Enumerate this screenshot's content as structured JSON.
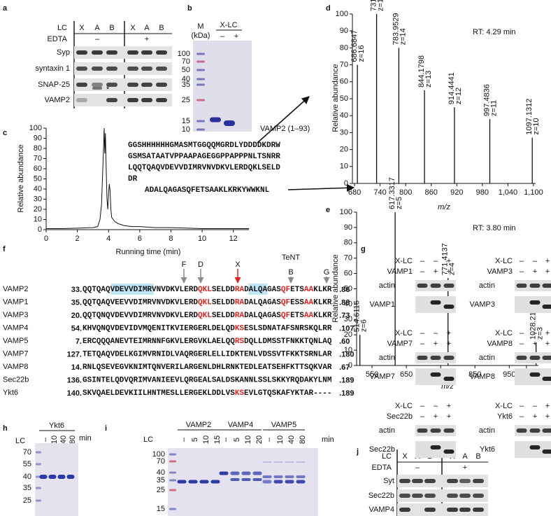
{
  "chart_data": [
    {
      "type": "line",
      "x": [
        0,
        1,
        2,
        3,
        3.3,
        3.45,
        3.55,
        3.62,
        3.68,
        3.72,
        3.76,
        3.8,
        3.85,
        3.9,
        3.95,
        4.0,
        4.05,
        4.1,
        4.15,
        4.2,
        4.3,
        4.4,
        4.6,
        4.8,
        5.0,
        5.5,
        6,
        7,
        8,
        10,
        12,
        13
      ],
      "values": [
        1,
        1,
        1.5,
        2,
        3,
        10,
        25,
        55,
        80,
        100,
        75,
        95,
        60,
        30,
        20,
        35,
        45,
        38,
        20,
        12,
        10,
        8,
        6,
        5,
        4,
        3,
        3,
        2,
        2,
        1,
        1,
        1
      ],
      "color": "#111111",
      "xlim": [
        0,
        13
      ],
      "ylim": [
        0,
        100
      ],
      "xticks": [
        0,
        2,
        4,
        6,
        8,
        10,
        12
      ],
      "yticks": [
        0,
        10,
        20,
        30,
        40,
        50,
        60,
        70,
        80,
        90,
        100
      ],
      "xlabel": "Running time (min)",
      "ylabel": "Relative abundance"
    },
    {
      "type": "stem",
      "x": [
        686.6847,
        731.7564,
        783.9529,
        844.1798,
        914.4441,
        997.4836,
        1097.1312
      ],
      "values": [
        70,
        100,
        80,
        55,
        45,
        38,
        27
      ],
      "color": "#111111",
      "label_color": "#2f63d6",
      "xlim": [
        675,
        1105
      ],
      "ylim": [
        0,
        100
      ],
      "xticks": [
        680,
        740,
        800,
        860,
        920,
        980,
        {
          "value": 1040,
          "label": "1,040"
        },
        {
          "value": 1100,
          "label": "1,100"
        }
      ],
      "yticks": [
        0,
        10,
        20,
        30,
        40,
        50,
        60,
        70,
        80,
        90,
        100
      ],
      "xlabel": "m/z",
      "ylabel": "Relative abundance",
      "rt_label": "RT: 4.29 min",
      "peak_labels": [
        {
          "mz": "686.6847",
          "charge": "z=16"
        },
        {
          "mz": "731.7564",
          "charge": "z=15"
        },
        {
          "mz": "783.9529",
          "charge": "z=14"
        },
        {
          "mz": "844.1798",
          "charge": "z=13"
        },
        {
          "mz": "914.4441",
          "charge": "z=12"
        },
        {
          "mz": "997.4836",
          "charge": "z=11"
        },
        {
          "mz": "1097.1312",
          "charge": "z=10"
        }
      ]
    },
    {
      "type": "stem",
      "x": [
        514.6116,
        617.3317,
        771.4137,
        1028.2152
      ],
      "values": [
        20,
        100,
        57,
        15
      ],
      "color": "#111111",
      "label_color": "#e0281e",
      "xlim": [
        505,
        1035
      ],
      "ylim": [
        0,
        100
      ],
      "xticks": [
        550,
        650,
        750,
        850,
        950,
        {
          "value": 1000,
          "label": "1,000"
        }
      ],
      "yticks": [
        0,
        10,
        20,
        30,
        40,
        50,
        60,
        70,
        80,
        90,
        100
      ],
      "xlabel": "m/z",
      "ylabel": "Relative abundance",
      "rt_label": "RT: 3.80 min",
      "peak_labels": [
        {
          "mz": "514.6116",
          "charge": "z=6"
        },
        {
          "mz": "617.3317",
          "charge": "z=5"
        },
        {
          "mz": "771.4137",
          "charge": "z=4"
        },
        {
          "mz": "1028.2152",
          "charge": "z=3"
        }
      ]
    }
  ],
  "panels": {
    "a": {
      "letter": "a",
      "lc": "LC",
      "lanes": [
        "X",
        "A",
        "B",
        "X",
        "A",
        "B"
      ],
      "edta": "EDTA",
      "edta_groups": [
        "–",
        "+"
      ],
      "rows": [
        "Syp",
        "syntaxin 1",
        "SNAP-25",
        "VAMP2"
      ],
      "mark": "*"
    },
    "b": {
      "letter": "b",
      "m": "M",
      "kda": "(kDa)",
      "xlc": "X-LC",
      "signs": [
        "–",
        "+"
      ],
      "markers": [
        100,
        70,
        50,
        40,
        35,
        25,
        15,
        10
      ],
      "band": "VAMP2 (1–93)"
    },
    "c": {
      "letter": "c",
      "sequence_blue": [
        "GGSHHHHHHGMASMTGGQQMGRDLYDDDDKDRW",
        "GSMSATAATVPPAAPAGEGGPPAPPPNLTSNRR",
        "LQQTQAQVDEVVDIMRVNVDKVLERDQKLSELD",
        "DR"
      ],
      "sequence_red": "ADALQAGASQFETSAAKLKRKYWWKNL"
    },
    "d": {
      "letter": "d"
    },
    "e": {
      "letter": "e"
    },
    "f": {
      "letter": "f",
      "tent": "TeNT",
      "sites": [
        {
          "label": "F"
        },
        {
          "label": "D"
        },
        {
          "label": "X",
          "color": "#e8201a"
        },
        {
          "label": "B"
        },
        {
          "label": "G"
        }
      ],
      "rows": [
        {
          "name": "VAMP2",
          "start": "33.",
          "end": ".86",
          "segments": [
            {
              "text": "QQTQAQ"
            },
            {
              "text": "VDEVVDIMR",
              "highlight": "#bfe4f4"
            },
            {
              "text": "VNVDKVLERD"
            },
            {
              "text": "QKL",
              "color": "#e8201a"
            },
            {
              "text": "SELDD"
            },
            {
              "text": "RA",
              "color": "#e8201a"
            },
            {
              "text": "DALQ",
              "highlight": "#bfe4f4"
            },
            {
              "text": "AGAS"
            },
            {
              "text": "QF",
              "color": "#e8201a"
            },
            {
              "text": "ETS"
            },
            {
              "text": "AA",
              "color": "#e8201a"
            },
            {
              "text": "KLKR"
            }
          ]
        },
        {
          "name": "VAMP1",
          "start": "35.",
          "end": ".88",
          "segments": [
            {
              "text": "QQTQAQVEEVVDIMRVNVDKVLERD"
            },
            {
              "text": "QKL",
              "color": "#e8201a"
            },
            {
              "text": "SELDD"
            },
            {
              "text": "RA",
              "color": "#e8201a"
            },
            {
              "text": "DALQAGAS"
            },
            {
              "text": "QF",
              "color": "#e8201a"
            },
            {
              "text": "ESS"
            },
            {
              "text": "AA",
              "color": "#e8201a"
            },
            {
              "text": "KLKR"
            }
          ]
        },
        {
          "name": "VAMP3",
          "start": "20.",
          "end": ".73",
          "segments": [
            {
              "text": "QQTQNQVDEVVDIMRVNVDKVLERD"
            },
            {
              "text": "QKL",
              "color": "#e8201a"
            },
            {
              "text": "SELDD"
            },
            {
              "text": "RA",
              "color": "#e8201a"
            },
            {
              "text": "DALQAGAS"
            },
            {
              "text": "QF",
              "color": "#e8201a"
            },
            {
              "text": "ETS"
            },
            {
              "text": "AA",
              "color": "#e8201a"
            },
            {
              "text": "KLKR"
            }
          ]
        },
        {
          "name": "VAMP4",
          "start": "54.",
          "end": ".107",
          "segments": [
            {
              "text": "KHVQNQVDEVIDVMQENITKVIERGERLDELQD"
            },
            {
              "text": "KS",
              "color": "#e8201a"
            },
            {
              "text": "ESLSDNATAFSNRSKQLRR"
            }
          ]
        },
        {
          "name": "VAMP5",
          "start": "7.",
          "end": ".60",
          "segments": [
            {
              "text": "ERCQQQANEVTEIMRNNFGKVLERGVKLAELQQ"
            },
            {
              "text": "RS",
              "color": "#e8201a"
            },
            {
              "text": "DQLLDMSSTFNKKTQNLAQ"
            }
          ]
        },
        {
          "name": "VAMP7",
          "start": "127.",
          "end": ".180",
          "segments": [
            {
              "text": "TETQAQVDELKGIMVRNIDLVAQRGERLELLIDKTENLVDSSVTFKKTSRNLAR"
            }
          ]
        },
        {
          "name": "VAMP8",
          "start": "14.",
          "end": ".67",
          "segments": [
            {
              "text": "RNLQSEVEGVKNIMTQNVERILARGENLDHLRNKTEDLEATSEHFKTTSQKVAR"
            }
          ]
        },
        {
          "name": "Sec22b",
          "start": "136.",
          "end": ".189",
          "segments": [
            {
              "text": "GSINTELQDVQRIMVANIEEVLQRGEALSALDSKANNLSSLSKKYRQDAKYLNM"
            }
          ]
        },
        {
          "name": "Ykt6",
          "start": "140.",
          "end": ".189",
          "segments": [
            {
              "text": "SKVQAELDEVKIILHNTMESLLERGEKLDDLVS"
            },
            {
              "text": "KS",
              "color": "#e8201a"
            },
            {
              "text": "EVLGTQSKAFYKTAR----"
            }
          ]
        }
      ]
    },
    "g": {
      "letter": "g",
      "blots": [
        {
          "header": [
            "X-LC",
            "VAMP1"
          ],
          "signs": [
            [
              "–",
              "–",
              "+"
            ],
            [
              "–",
              "+",
              "+"
            ]
          ],
          "rows": [
            "actin",
            "VAMP1"
          ]
        },
        {
          "header": [
            "X-LC",
            "VAMP3"
          ],
          "signs": [
            [
              "–",
              "–",
              "+"
            ],
            [
              "–",
              "+",
              "+"
            ]
          ],
          "rows": [
            "actin",
            "VAMP3"
          ]
        },
        {
          "header": [
            "X-LC",
            "VAMP7"
          ],
          "signs": [
            [
              "–",
              "–",
              "+"
            ],
            [
              "–",
              "+",
              "+"
            ]
          ],
          "rows": [
            "actin",
            "VAMP7"
          ]
        },
        {
          "header": [
            "X-LC",
            "VAMP8"
          ],
          "signs": [
            [
              "–",
              "–",
              "+"
            ],
            [
              "–",
              "+",
              "+"
            ]
          ],
          "rows": [
            "actin",
            "VAMP8"
          ]
        },
        {
          "header": [
            "X-LC",
            "Sec22b"
          ],
          "signs": [
            [
              "–",
              "–",
              "+"
            ],
            [
              "–",
              "+",
              "+"
            ]
          ],
          "rows": [
            "actin",
            "Sec22b"
          ]
        },
        {
          "header": [
            "X-LC",
            "Ykt6"
          ],
          "signs": [
            [
              "–",
              "–",
              "+"
            ],
            [
              "–",
              "+",
              "+"
            ]
          ],
          "rows": [
            "actin",
            "Ykt6"
          ]
        }
      ]
    },
    "h": {
      "letter": "h",
      "protein": "Ykt6",
      "lc": "LC",
      "lanes": [
        "–",
        10,
        40,
        80
      ],
      "unit": "min",
      "markers": [
        70,
        55,
        40,
        35,
        25
      ]
    },
    "i": {
      "letter": "i",
      "lc": "LC",
      "unit": "min",
      "markers": [
        100,
        70,
        40,
        35,
        25,
        15
      ],
      "groups": [
        {
          "name": "VAMP2",
          "lanes": [
            "–",
            5,
            10,
            15
          ]
        },
        {
          "name": "VAMP4",
          "lanes": [
            "–",
            5,
            10,
            20
          ]
        },
        {
          "name": "VAMP5",
          "lanes": [
            "–",
            10,
            40,
            80
          ]
        }
      ]
    },
    "j": {
      "letter": "j",
      "lc": "LC",
      "lanes": [
        "X",
        "A",
        "B",
        "X",
        "A",
        "B"
      ],
      "edta": "EDTA",
      "edta_groups": [
        "–",
        "+"
      ],
      "rows": [
        "Syt",
        "Sec22b",
        "VAMP4"
      ]
    }
  }
}
